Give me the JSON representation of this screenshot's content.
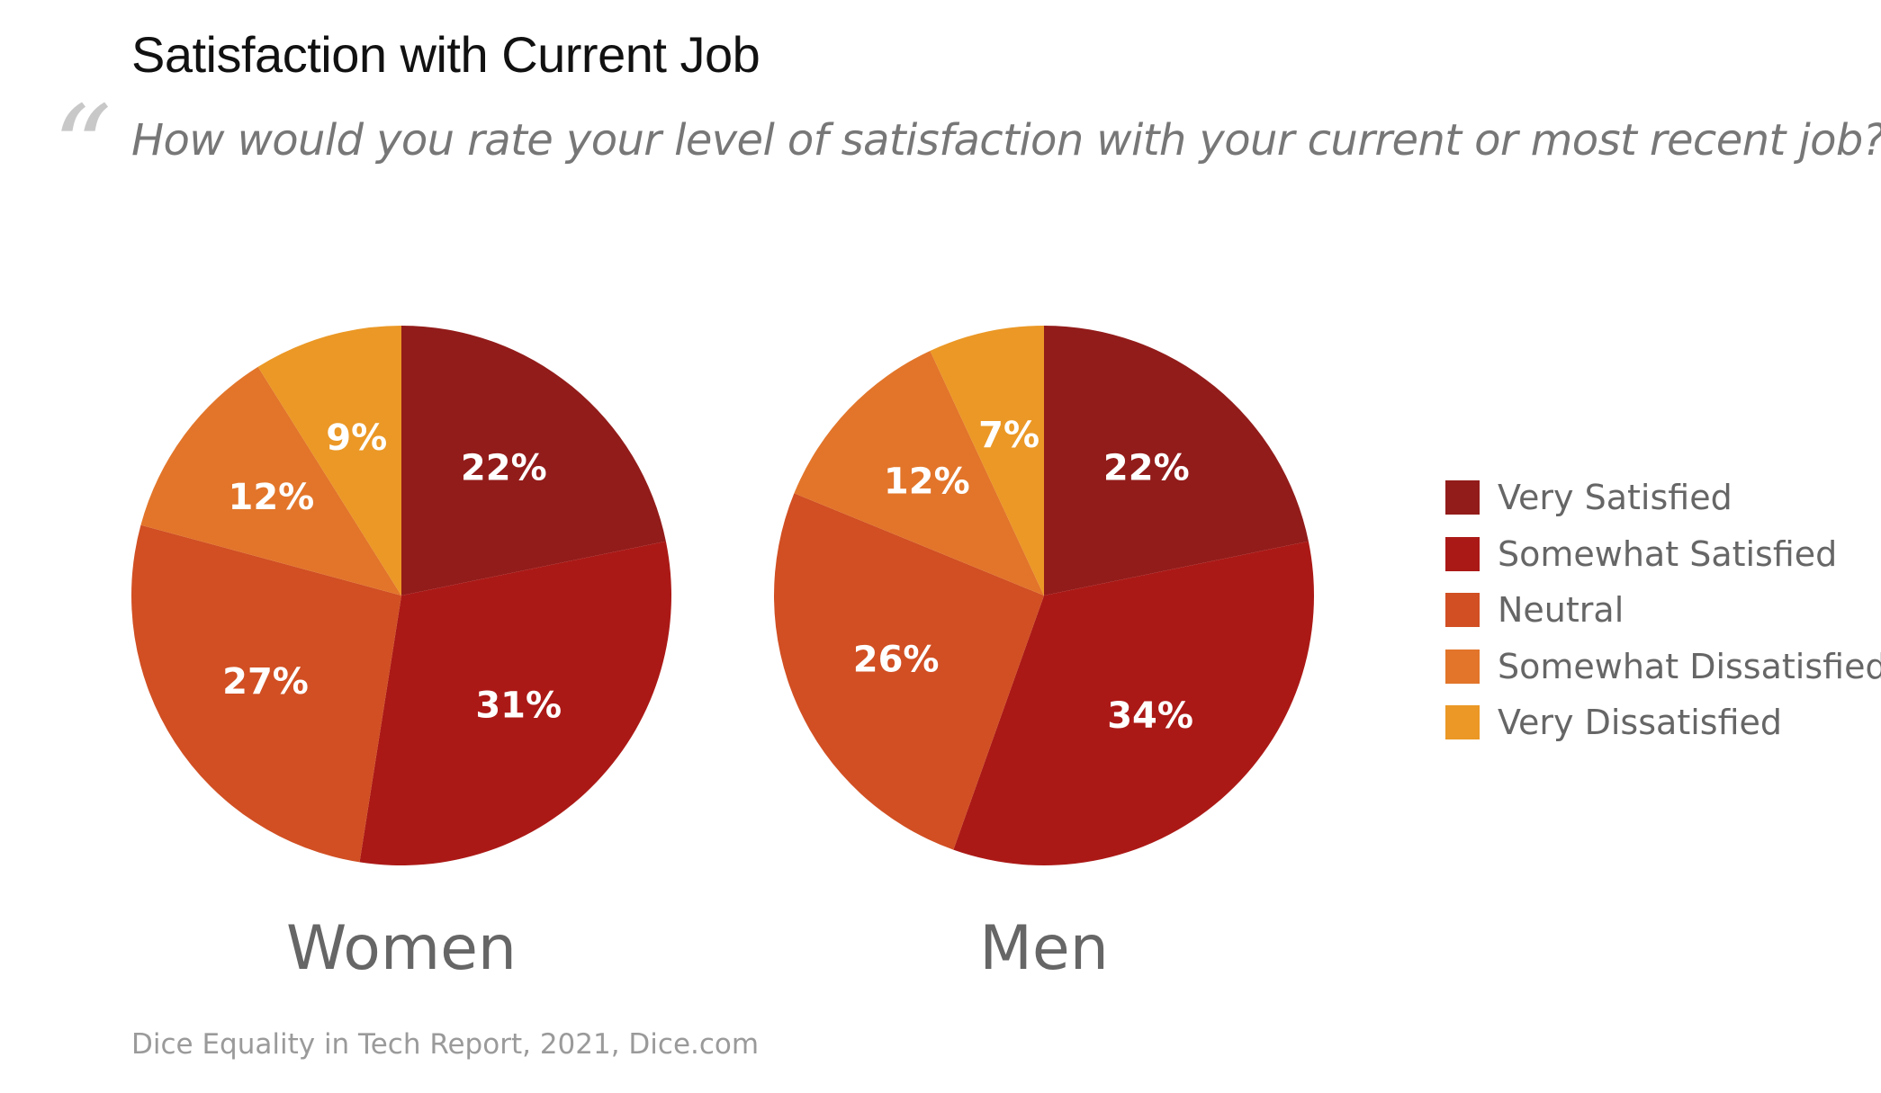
{
  "title": "Satisfaction with Current Job",
  "quote_mark": "“",
  "question": "How would you rate your level of satisfaction with your current or most recent job?",
  "source": "Dice Equality in Tech Report, 2021, Dice.com",
  "chart_data": {
    "type": "pie",
    "title": "Satisfaction with Current Job",
    "categories": [
      "Very Satisfied",
      "Somewhat Satisfied",
      "Neutral",
      "Somewhat Dissatisfied",
      "Very Dissatisfied"
    ],
    "colors": [
      "#921c1a",
      "#ab1916",
      "#d14f23",
      "#e2752a",
      "#eb9826"
    ],
    "legend_position": "right",
    "series": [
      {
        "name": "Women",
        "values": [
          22,
          31,
          27,
          12,
          9
        ],
        "labels": [
          "22%",
          "31%",
          "27%",
          "12%",
          "9%"
        ]
      },
      {
        "name": "Men",
        "values": [
          22,
          34,
          26,
          12,
          7
        ],
        "labels": [
          "22%",
          "34%",
          "26%",
          "12%",
          "7%"
        ]
      }
    ]
  }
}
